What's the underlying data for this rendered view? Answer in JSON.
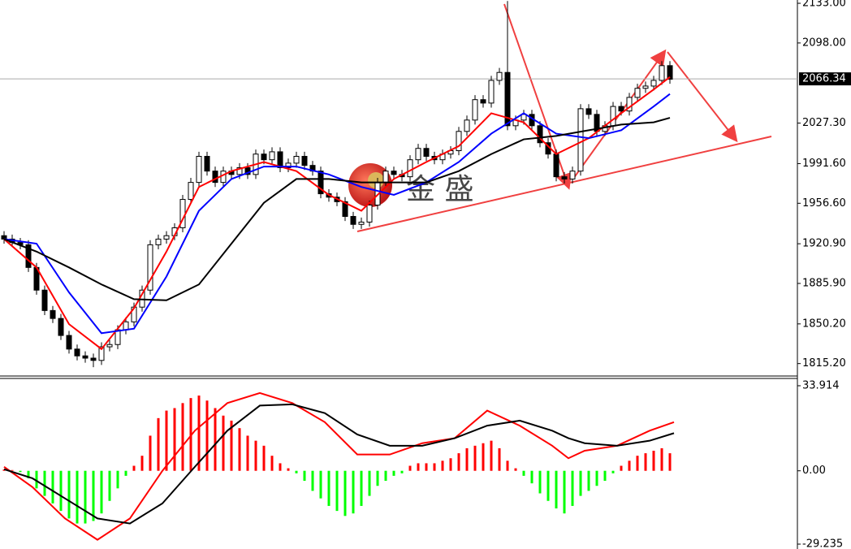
{
  "chart_data": [
    {
      "type": "candlestick",
      "watermark": "金 盛",
      "ylim": [
        1802.8,
        2135.9
      ],
      "yticks": [
        {
          "value": 1815.2,
          "label": "1815.20"
        },
        {
          "value": 1850.2,
          "label": "1850.20"
        },
        {
          "value": 1885.9,
          "label": "1885.90"
        },
        {
          "value": 1920.9,
          "label": "1920.90"
        },
        {
          "value": 1956.6,
          "label": "1956.60"
        },
        {
          "value": 1991.6,
          "label": "1991.60"
        },
        {
          "value": 2027.3,
          "label": "2027.30"
        },
        {
          "value": 2098,
          "label": "2098.00"
        },
        {
          "value": 2133,
          "label": "2133.00"
        }
      ],
      "last_price": 2066.34,
      "up_color": "#ffffff",
      "down_color": "#000000",
      "candles": [
        [
          1928,
          1932,
          1921,
          1925
        ],
        [
          1925,
          1929,
          1918,
          1922
        ],
        [
          1922,
          1926,
          1916,
          1920
        ],
        [
          1920,
          1924,
          1896,
          1900
        ],
        [
          1900,
          1904,
          1876,
          1880
        ],
        [
          1880,
          1884,
          1858,
          1862
        ],
        [
          1862,
          1866,
          1851,
          1855
        ],
        [
          1855,
          1859,
          1836,
          1840
        ],
        [
          1840,
          1844,
          1824,
          1828
        ],
        [
          1828,
          1832,
          1818,
          1822
        ],
        [
          1822,
          1826,
          1816,
          1820
        ],
        [
          1820,
          1824,
          1812,
          1818
        ],
        [
          1818,
          1834,
          1814,
          1830
        ],
        [
          1830,
          1836,
          1826,
          1832
        ],
        [
          1832,
          1849,
          1828,
          1845
        ],
        [
          1845,
          1856,
          1841,
          1852
        ],
        [
          1852,
          1869,
          1848,
          1865
        ],
        [
          1865,
          1884,
          1861,
          1880
        ],
        [
          1880,
          1924,
          1876,
          1920
        ],
        [
          1920,
          1929,
          1916,
          1925
        ],
        [
          1925,
          1932,
          1921,
          1928
        ],
        [
          1928,
          1939,
          1924,
          1935
        ],
        [
          1935,
          1964,
          1931,
          1960
        ],
        [
          1960,
          1979,
          1956,
          1975
        ],
        [
          1975,
          2002,
          1971,
          1998
        ],
        [
          1998,
          2002,
          1981,
          1985
        ],
        [
          1985,
          1989,
          1971,
          1975
        ],
        [
          1975,
          1989,
          1971,
          1985
        ],
        [
          1985,
          1989,
          1978,
          1982
        ],
        [
          1982,
          1992,
          1978,
          1988
        ],
        [
          1988,
          1992,
          1978,
          1982
        ],
        [
          1982,
          2004,
          1978,
          2000
        ],
        [
          2000,
          2004,
          1991,
          1995
        ],
        [
          1995,
          2006,
          1991,
          2002
        ],
        [
          2002,
          2006,
          1984,
          1988
        ],
        [
          1988,
          1996,
          1984,
          1992
        ],
        [
          1992,
          2002,
          1988,
          1998
        ],
        [
          1998,
          2002,
          1986,
          1990
        ],
        [
          1990,
          1994,
          1981,
          1985
        ],
        [
          1985,
          1989,
          1961,
          1965
        ],
        [
          1965,
          1969,
          1958,
          1962
        ],
        [
          1962,
          1966,
          1954,
          1958
        ],
        [
          1958,
          1962,
          1941,
          1945
        ],
        [
          1945,
          1949,
          1934,
          1938
        ],
        [
          1938,
          1944,
          1934,
          1940
        ],
        [
          1940,
          1959,
          1936,
          1955
        ],
        [
          1955,
          1979,
          1951,
          1975
        ],
        [
          1975,
          1989,
          1971,
          1985
        ],
        [
          1985,
          1989,
          1978,
          1982
        ],
        [
          1982,
          1986,
          1976,
          1980
        ],
        [
          1980,
          1999,
          1976,
          1995
        ],
        [
          1995,
          2009,
          1991,
          2005
        ],
        [
          2005,
          2009,
          1994,
          1998
        ],
        [
          1998,
          2002,
          1991,
          1995
        ],
        [
          1995,
          2004,
          1991,
          2000
        ],
        [
          2000,
          2007,
          1996,
          2003
        ],
        [
          2003,
          2024,
          1999,
          2020
        ],
        [
          2020,
          2034,
          2016,
          2030
        ],
        [
          2030,
          2052,
          2026,
          2048
        ],
        [
          2048,
          2052,
          2041,
          2045
        ],
        [
          2045,
          2069,
          2041,
          2065
        ],
        [
          2065,
          2076,
          2061,
          2072
        ],
        [
          2072,
          2135,
          2021,
          2025
        ],
        [
          2025,
          2034,
          2021,
          2030
        ],
        [
          2030,
          2039,
          2026,
          2035
        ],
        [
          2035,
          2039,
          2021,
          2025
        ],
        [
          2025,
          2029,
          2006,
          2010
        ],
        [
          2010,
          2014,
          1996,
          2000
        ],
        [
          2000,
          2004,
          1976,
          1980
        ],
        [
          1980,
          1984,
          1974,
          1978
        ],
        [
          1978,
          1989,
          1974,
          1985
        ],
        [
          1985,
          2044,
          1981,
          2040
        ],
        [
          2040,
          2044,
          2031,
          2035
        ],
        [
          2035,
          2039,
          2016,
          2020
        ],
        [
          2020,
          2029,
          2016,
          2025
        ],
        [
          2025,
          2046,
          2021,
          2042
        ],
        [
          2042,
          2046,
          2034,
          2038
        ],
        [
          2038,
          2054,
          2034,
          2050
        ],
        [
          2050,
          2062,
          2046,
          2058
        ],
        [
          2058,
          2064,
          2054,
          2060
        ],
        [
          2060,
          2069,
          2056,
          2065
        ],
        [
          2065,
          2082,
          2061,
          2078
        ],
        [
          2078,
          2082,
          2062,
          2066
        ]
      ],
      "series": [
        {
          "color": "#ff0000",
          "x": [
            0,
            4,
            8,
            12,
            16,
            20,
            24,
            28,
            32,
            36,
            40,
            44,
            48,
            52,
            56,
            60,
            64,
            68,
            72,
            76,
            80,
            82
          ],
          "values": [
            1925,
            1900,
            1850,
            1828,
            1864,
            1914,
            1971,
            1985,
            1993,
            1985,
            1964,
            1950,
            1978,
            1993,
            2007,
            2036,
            2028,
            2000,
            2014,
            2036,
            2057,
            2068
          ]
        },
        {
          "color": "#0000ff",
          "x": [
            0,
            4,
            8,
            12,
            16,
            20,
            24,
            28,
            32,
            36,
            40,
            44,
            48,
            52,
            56,
            60,
            64,
            68,
            72,
            76,
            80,
            82
          ],
          "values": [
            1925,
            1921,
            1878,
            1842,
            1846,
            1892,
            1950,
            1978,
            1989,
            1989,
            1982,
            1971,
            1964,
            1975,
            1993,
            2018,
            2036,
            2018,
            2014,
            2021,
            2042,
            2053
          ]
        },
        {
          "color": "#000000",
          "x": [
            0,
            4,
            8,
            12,
            16,
            20,
            24,
            28,
            32,
            36,
            40,
            44,
            48,
            52,
            56,
            60,
            64,
            68,
            72,
            76,
            80,
            82
          ],
          "values": [
            1925,
            1914,
            1900,
            1885,
            1872,
            1871,
            1885,
            1921,
            1957,
            1978,
            1978,
            1975,
            1975,
            1975,
            1985,
            2000,
            2013,
            2016,
            2021,
            2026,
            2028,
            2032
          ]
        }
      ]
    },
    {
      "type": "macd",
      "ylim": [
        -31.18,
        36.82
      ],
      "yticks": [
        33.914,
        {
          "value": 0,
          "label": "0.00"
        },
        -29.235
      ],
      "up_color": "#ff0000",
      "down_color": "#00ff00",
      "histogram": [
        0.5,
        0.3,
        -0.5,
        -3,
        -7,
        -10,
        -13,
        -16,
        -19,
        -21,
        -21,
        -20,
        -17,
        -12,
        -7,
        -2,
        2,
        6,
        14,
        21,
        24,
        25,
        27,
        29,
        30,
        28,
        25,
        22,
        20,
        17,
        14,
        12,
        10,
        6,
        3,
        1,
        -1,
        -4,
        -8,
        -11,
        -14,
        -16,
        -18,
        -17,
        -14,
        -10,
        -6,
        -4,
        -2,
        -1,
        2,
        3,
        3,
        3,
        4,
        5,
        7,
        9,
        10,
        11,
        12,
        9,
        4,
        1,
        -2,
        -5,
        -9,
        -12,
        -15,
        -17,
        -14,
        -10,
        -8,
        -6,
        -4,
        -1,
        2,
        4,
        6,
        7,
        8,
        9,
        7
      ],
      "series": [
        {
          "color": "#ff0000",
          "x": [
            0,
            3.5,
            7.5,
            11.5,
            15.5,
            19.5,
            23.5,
            27.5,
            31.5,
            35.5,
            39.5,
            43.5,
            47.5,
            51.5,
            55.5,
            59.5,
            63.5,
            67.5,
            69.5,
            71.5,
            75.5,
            79.5,
            82.5
          ],
          "values": [
            1.6,
            -6.5,
            -19,
            -27.5,
            -19,
            0,
            16,
            27,
            31,
            27,
            19.4,
            6.5,
            6.5,
            11,
            13,
            24,
            18,
            10,
            5,
            8,
            10,
            16,
            19.4
          ]
        },
        {
          "color": "#000000",
          "x": [
            0,
            3.5,
            7.5,
            11.5,
            15.5,
            19.5,
            23.5,
            27.5,
            31.5,
            35.5,
            39.5,
            43.5,
            47.5,
            51.5,
            55.5,
            59.5,
            63.5,
            67.5,
            69.5,
            71.5,
            75.5,
            79.5,
            82.5
          ],
          "values": [
            0.6,
            -3,
            -11,
            -19,
            -21,
            -13,
            1.6,
            16,
            26,
            26.5,
            23,
            14.5,
            10,
            10,
            13,
            18,
            20,
            16,
            13,
            11,
            10,
            12,
            15
          ]
        }
      ]
    }
  ]
}
